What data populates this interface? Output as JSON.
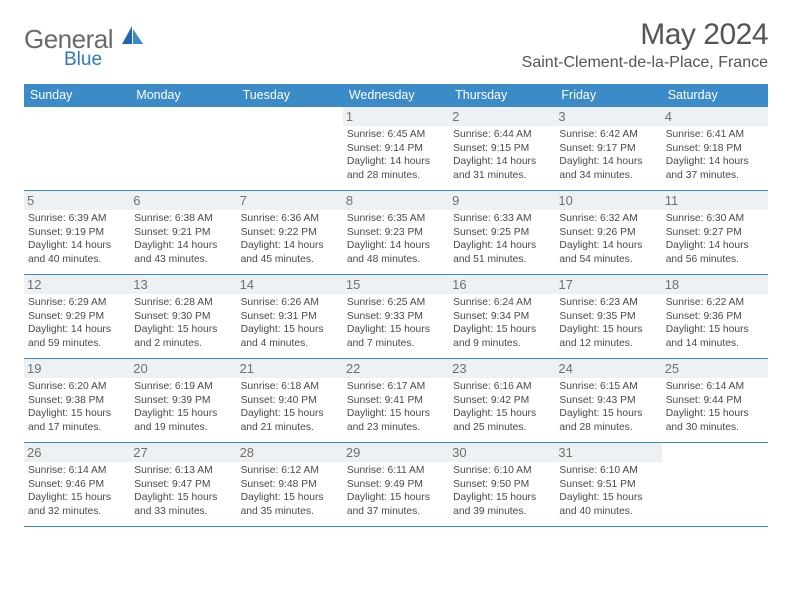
{
  "brand": {
    "part1": "General",
    "part2": "Blue"
  },
  "title": "May 2024",
  "location": "Saint-Clement-de-la-Place, France",
  "colors": {
    "header_bg": "#3b8bc9",
    "header_text": "#ffffff",
    "daynum_bg": "#eef1f3",
    "text": "#4a4a4a",
    "brand_gray": "#6a6a6a",
    "brand_blue": "#2f78bd",
    "row_border": "#3b8bc9"
  },
  "typography": {
    "title_fontsize": 30,
    "location_fontsize": 16,
    "weekday_fontsize": 12.5,
    "daynum_fontsize": 13,
    "body_fontsize": 10.3
  },
  "weekdays": [
    "Sunday",
    "Monday",
    "Tuesday",
    "Wednesday",
    "Thursday",
    "Friday",
    "Saturday"
  ],
  "weeks": [
    [
      {
        "n": "",
        "empty": true
      },
      {
        "n": "",
        "empty": true
      },
      {
        "n": "",
        "empty": true
      },
      {
        "n": "1",
        "sunrise": "Sunrise: 6:45 AM",
        "sunset": "Sunset: 9:14 PM",
        "day1": "Daylight: 14 hours",
        "day2": "and 28 minutes."
      },
      {
        "n": "2",
        "sunrise": "Sunrise: 6:44 AM",
        "sunset": "Sunset: 9:15 PM",
        "day1": "Daylight: 14 hours",
        "day2": "and 31 minutes."
      },
      {
        "n": "3",
        "sunrise": "Sunrise: 6:42 AM",
        "sunset": "Sunset: 9:17 PM",
        "day1": "Daylight: 14 hours",
        "day2": "and 34 minutes."
      },
      {
        "n": "4",
        "sunrise": "Sunrise: 6:41 AM",
        "sunset": "Sunset: 9:18 PM",
        "day1": "Daylight: 14 hours",
        "day2": "and 37 minutes."
      }
    ],
    [
      {
        "n": "5",
        "sunrise": "Sunrise: 6:39 AM",
        "sunset": "Sunset: 9:19 PM",
        "day1": "Daylight: 14 hours",
        "day2": "and 40 minutes."
      },
      {
        "n": "6",
        "sunrise": "Sunrise: 6:38 AM",
        "sunset": "Sunset: 9:21 PM",
        "day1": "Daylight: 14 hours",
        "day2": "and 43 minutes."
      },
      {
        "n": "7",
        "sunrise": "Sunrise: 6:36 AM",
        "sunset": "Sunset: 9:22 PM",
        "day1": "Daylight: 14 hours",
        "day2": "and 45 minutes."
      },
      {
        "n": "8",
        "sunrise": "Sunrise: 6:35 AM",
        "sunset": "Sunset: 9:23 PM",
        "day1": "Daylight: 14 hours",
        "day2": "and 48 minutes."
      },
      {
        "n": "9",
        "sunrise": "Sunrise: 6:33 AM",
        "sunset": "Sunset: 9:25 PM",
        "day1": "Daylight: 14 hours",
        "day2": "and 51 minutes."
      },
      {
        "n": "10",
        "sunrise": "Sunrise: 6:32 AM",
        "sunset": "Sunset: 9:26 PM",
        "day1": "Daylight: 14 hours",
        "day2": "and 54 minutes."
      },
      {
        "n": "11",
        "sunrise": "Sunrise: 6:30 AM",
        "sunset": "Sunset: 9:27 PM",
        "day1": "Daylight: 14 hours",
        "day2": "and 56 minutes."
      }
    ],
    [
      {
        "n": "12",
        "sunrise": "Sunrise: 6:29 AM",
        "sunset": "Sunset: 9:29 PM",
        "day1": "Daylight: 14 hours",
        "day2": "and 59 minutes."
      },
      {
        "n": "13",
        "sunrise": "Sunrise: 6:28 AM",
        "sunset": "Sunset: 9:30 PM",
        "day1": "Daylight: 15 hours",
        "day2": "and 2 minutes."
      },
      {
        "n": "14",
        "sunrise": "Sunrise: 6:26 AM",
        "sunset": "Sunset: 9:31 PM",
        "day1": "Daylight: 15 hours",
        "day2": "and 4 minutes."
      },
      {
        "n": "15",
        "sunrise": "Sunrise: 6:25 AM",
        "sunset": "Sunset: 9:33 PM",
        "day1": "Daylight: 15 hours",
        "day2": "and 7 minutes."
      },
      {
        "n": "16",
        "sunrise": "Sunrise: 6:24 AM",
        "sunset": "Sunset: 9:34 PM",
        "day1": "Daylight: 15 hours",
        "day2": "and 9 minutes."
      },
      {
        "n": "17",
        "sunrise": "Sunrise: 6:23 AM",
        "sunset": "Sunset: 9:35 PM",
        "day1": "Daylight: 15 hours",
        "day2": "and 12 minutes."
      },
      {
        "n": "18",
        "sunrise": "Sunrise: 6:22 AM",
        "sunset": "Sunset: 9:36 PM",
        "day1": "Daylight: 15 hours",
        "day2": "and 14 minutes."
      }
    ],
    [
      {
        "n": "19",
        "sunrise": "Sunrise: 6:20 AM",
        "sunset": "Sunset: 9:38 PM",
        "day1": "Daylight: 15 hours",
        "day2": "and 17 minutes."
      },
      {
        "n": "20",
        "sunrise": "Sunrise: 6:19 AM",
        "sunset": "Sunset: 9:39 PM",
        "day1": "Daylight: 15 hours",
        "day2": "and 19 minutes."
      },
      {
        "n": "21",
        "sunrise": "Sunrise: 6:18 AM",
        "sunset": "Sunset: 9:40 PM",
        "day1": "Daylight: 15 hours",
        "day2": "and 21 minutes."
      },
      {
        "n": "22",
        "sunrise": "Sunrise: 6:17 AM",
        "sunset": "Sunset: 9:41 PM",
        "day1": "Daylight: 15 hours",
        "day2": "and 23 minutes."
      },
      {
        "n": "23",
        "sunrise": "Sunrise: 6:16 AM",
        "sunset": "Sunset: 9:42 PM",
        "day1": "Daylight: 15 hours",
        "day2": "and 25 minutes."
      },
      {
        "n": "24",
        "sunrise": "Sunrise: 6:15 AM",
        "sunset": "Sunset: 9:43 PM",
        "day1": "Daylight: 15 hours",
        "day2": "and 28 minutes."
      },
      {
        "n": "25",
        "sunrise": "Sunrise: 6:14 AM",
        "sunset": "Sunset: 9:44 PM",
        "day1": "Daylight: 15 hours",
        "day2": "and 30 minutes."
      }
    ],
    [
      {
        "n": "26",
        "sunrise": "Sunrise: 6:14 AM",
        "sunset": "Sunset: 9:46 PM",
        "day1": "Daylight: 15 hours",
        "day2": "and 32 minutes."
      },
      {
        "n": "27",
        "sunrise": "Sunrise: 6:13 AM",
        "sunset": "Sunset: 9:47 PM",
        "day1": "Daylight: 15 hours",
        "day2": "and 33 minutes."
      },
      {
        "n": "28",
        "sunrise": "Sunrise: 6:12 AM",
        "sunset": "Sunset: 9:48 PM",
        "day1": "Daylight: 15 hours",
        "day2": "and 35 minutes."
      },
      {
        "n": "29",
        "sunrise": "Sunrise: 6:11 AM",
        "sunset": "Sunset: 9:49 PM",
        "day1": "Daylight: 15 hours",
        "day2": "and 37 minutes."
      },
      {
        "n": "30",
        "sunrise": "Sunrise: 6:10 AM",
        "sunset": "Sunset: 9:50 PM",
        "day1": "Daylight: 15 hours",
        "day2": "and 39 minutes."
      },
      {
        "n": "31",
        "sunrise": "Sunrise: 6:10 AM",
        "sunset": "Sunset: 9:51 PM",
        "day1": "Daylight: 15 hours",
        "day2": "and 40 minutes."
      },
      {
        "n": "",
        "empty": true
      }
    ]
  ]
}
